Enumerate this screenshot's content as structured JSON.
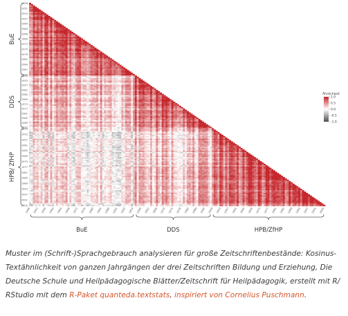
{
  "chart_data": {
    "type": "heatmap",
    "legend_title": "Ähnlichkeit",
    "legend_ticks": [
      "1.0",
      "0.5",
      "0.0",
      "-0.5",
      "-1.0"
    ],
    "color_scale": {
      "high": "#c4262b",
      "mid": "#ffffff",
      "low": "#4d4d4d"
    },
    "groups": [
      {
        "name": "BuE",
        "n": 55,
        "first_year": 1948,
        "last_year": 1990
      },
      {
        "name": "DDS",
        "n": 40,
        "first_year": 1949,
        "last_year": 1992
      },
      {
        "name": "HPB/ ZfHP",
        "n": 59,
        "first_year": 1949,
        "last_year": 2007
      }
    ],
    "row_labels": {
      "BuE": [
        "1948",
        "1951",
        "1954",
        "1957",
        "1960",
        "1963",
        "1966",
        "1969",
        "1972",
        "1975",
        "1978",
        "1981",
        "1984",
        "1987",
        "1990"
      ],
      "DDS": [
        "1949",
        "1953",
        "1957",
        "1961",
        "1965",
        "1969",
        "1973",
        "1977",
        "1981",
        "1985",
        "1989",
        "1992"
      ],
      "HPB/ ZfHP": [
        "1949",
        "1953",
        "1957",
        "1961",
        "1965",
        "1969",
        "1973",
        "1977",
        "1981",
        "1985",
        "1989",
        "1993",
        "1997",
        "2001",
        "2005"
      ]
    },
    "col_labels": [
      "1948",
      "1952",
      "1956",
      "1960",
      "1964",
      "1968",
      "1972",
      "1976",
      "1980",
      "1984",
      "1988",
      "1991",
      "1950",
      "1954",
      "1958",
      "1962",
      "1966",
      "1970",
      "1974",
      "1978",
      "1982",
      "1986",
      "1990",
      "1949",
      "1953",
      "1957",
      "1961",
      "1965",
      "1969",
      "1973",
      "1977",
      "1981",
      "1985",
      "1989",
      "1993",
      "1997",
      "2001",
      "2005"
    ],
    "x_group_labels": [
      "BuE",
      "DDS",
      "HPB/ZfHP"
    ],
    "y_group_labels": [
      "BuE",
      "DDS",
      "HPB/ ZfHP"
    ],
    "mean_similarity": [
      {
        "row_group": "BuE",
        "col_group": "BuE",
        "value": 0.62
      },
      {
        "row_group": "DDS",
        "col_group": "BuE",
        "value": 0.28
      },
      {
        "row_group": "DDS",
        "col_group": "DDS",
        "value": 0.55
      },
      {
        "row_group": "HPB/ ZfHP",
        "col_group": "BuE",
        "value": 0.05
      },
      {
        "row_group": "HPB/ ZfHP",
        "col_group": "DDS",
        "value": 0.25
      },
      {
        "row_group": "HPB/ ZfHP",
        "col_group": "HPB/ ZfHP",
        "value": 0.6
      }
    ]
  },
  "caption": {
    "text": "Muster im (Schrift-)Sprachgebrauch analysieren für große Zeitschriftenbestände: Kosinus-Textähnlichkeit von ganzen Jahrgängen der drei Zeitschriften Bildung und Erziehung, Die Deutsche Schule und Heilpädagogische Blätter/Zeitschrift für Heilpädagogik, erstellt mit R/ RStudio mit dem ",
    "link1": "R-Paket quanteda.textstats",
    "sep": ", ",
    "link2": "inspiriert von Cornelius Puschmann",
    "end": "."
  }
}
